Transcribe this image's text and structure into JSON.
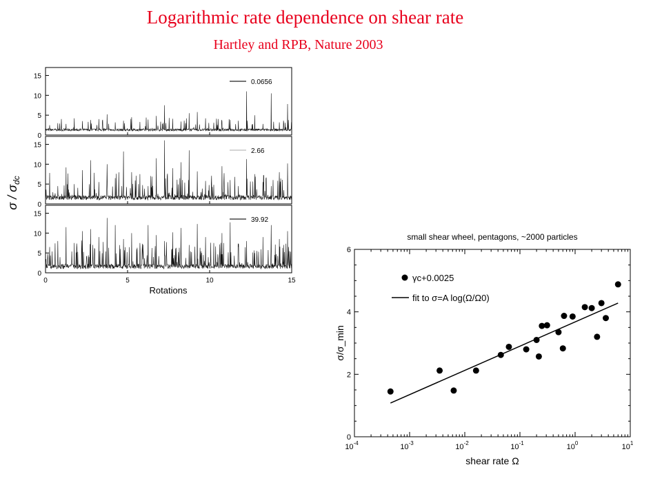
{
  "slide": {
    "title": "Logarithmic rate dependence on shear rate",
    "subtitle": "Hartley and RPB, Nature 2003"
  },
  "chart_data": [
    {
      "type": "line",
      "description_free": true,
      "panels": [
        {
          "name": "0.0656",
          "ylim": [
            0,
            17
          ],
          "yticks": [
            0,
            5,
            10,
            15
          ],
          "baseline": 1.0,
          "peaks": [
            2.5,
            3.0,
            2.8,
            4.2,
            3.5,
            3.8,
            4.0,
            5.2,
            3.2,
            3.6,
            4.5,
            3.3,
            3.9,
            4.8,
            7.5,
            4.1,
            3.4,
            5.5,
            5.8,
            4.2,
            3.1,
            3.5,
            3.8,
            3.6,
            11.0,
            5.0,
            2.8,
            10.5,
            3.2,
            7.8
          ]
        },
        {
          "name": "2.66",
          "ylim": [
            0,
            17
          ],
          "yticks": [
            0,
            5,
            10,
            15
          ],
          "baseline": 1.0,
          "peaks": [
            7.8,
            4.5,
            9.2,
            5.0,
            8.5,
            11.0,
            5.5,
            10.0,
            6.5,
            13.2,
            8.0,
            7.5,
            4.5,
            11.5,
            16.0,
            9.0,
            10.5,
            13.5,
            8.2,
            5.8,
            4.8,
            9.5,
            6.0,
            4.5,
            11.3,
            7.5,
            5.5,
            4.5,
            8.0,
            10.2
          ]
        },
        {
          "name": "39.92",
          "ylim": [
            0,
            17
          ],
          "yticks": [
            0,
            5,
            10,
            15
          ],
          "baseline": 1.0,
          "peaks": [
            6.5,
            8.0,
            11.5,
            7.5,
            10.5,
            11.0,
            9.0,
            13.8,
            12.0,
            8.5,
            10.0,
            7.5,
            12.0,
            9.5,
            8.0,
            10.2,
            11.3,
            7.0,
            12.3,
            9.0,
            7.5,
            10.0,
            12.7,
            6.5,
            8.0,
            5.0,
            9.0,
            12.0,
            8.5,
            10.5
          ]
        }
      ],
      "xlim": [
        0,
        15
      ],
      "xticks": [
        0,
        5,
        10,
        15
      ],
      "xlabel": "Rotations",
      "ylabel": "σ / σ_dc",
      "grid": false,
      "legend_position": "top-right"
    },
    {
      "type": "scatter",
      "title": "small shear wheel, pentagons, ~2000 particles",
      "xlabel": "shear rate Ω",
      "ylabel": "σ/σ_min",
      "xscale": "log",
      "xlim": [
        0.0001,
        10
      ],
      "ylim": [
        0,
        6
      ],
      "xticks": [
        "10^-4",
        "10^-3",
        "10^-2",
        "10^-1",
        "10^0",
        "10^1"
      ],
      "yticks": [
        0,
        2,
        4,
        6
      ],
      "legend_position": "top-left",
      "series": [
        {
          "name": "γc+0.0025",
          "x": [
            0.00045,
            0.0035,
            0.0063,
            0.016,
            0.045,
            0.063,
            0.13,
            0.2,
            0.22,
            0.25,
            0.31,
            0.5,
            0.6,
            0.63,
            0.9,
            1.5,
            2.0,
            2.5,
            3.0,
            3.6,
            6.0
          ],
          "y": [
            1.45,
            2.12,
            1.48,
            2.12,
            2.62,
            2.88,
            2.8,
            3.1,
            2.57,
            3.55,
            3.57,
            3.35,
            2.83,
            3.87,
            3.85,
            4.15,
            4.12,
            3.2,
            4.28,
            3.8,
            4.88
          ]
        },
        {
          "name": "fit to σ=A log(Ω/Ω0)",
          "x": [
            0.00045,
            6.0
          ],
          "y": [
            1.08,
            4.28
          ]
        }
      ]
    }
  ]
}
